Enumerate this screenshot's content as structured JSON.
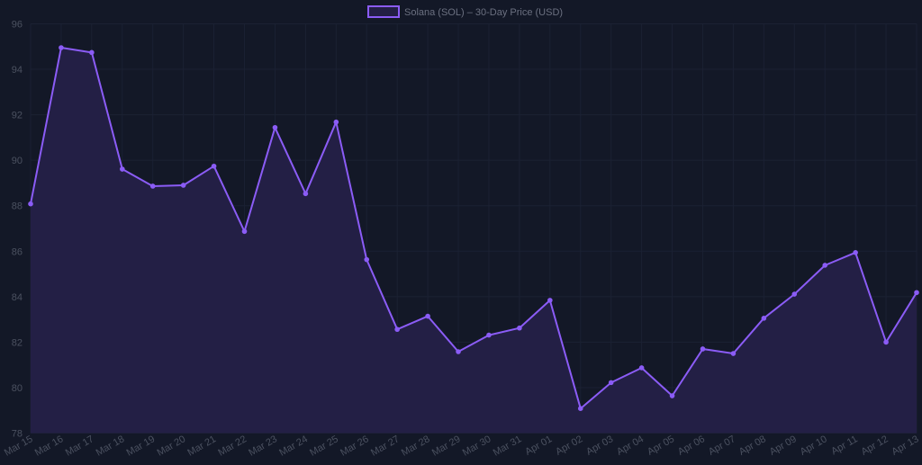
{
  "colors": {
    "background": "#131827",
    "line": "#8b5cf6",
    "fill": "#231f45",
    "grid": "#1b2133",
    "tick_text": "#4b5160",
    "legend_text": "#6b7080"
  },
  "legend": {
    "label": "Solana (SOL) – 30-Day Price (USD)"
  },
  "chart_data": {
    "type": "area",
    "title": "",
    "xlabel": "",
    "ylabel": "",
    "ylim": [
      78,
      96
    ],
    "yticks": [
      78,
      80,
      82,
      84,
      86,
      88,
      90,
      92,
      94,
      96
    ],
    "grid": true,
    "legend_position": "top-center",
    "categories": [
      "Mar 15",
      "Mar 16",
      "Mar 17",
      "Mar 18",
      "Mar 19",
      "Mar 20",
      "Mar 21",
      "Mar 22",
      "Mar 23",
      "Mar 24",
      "Mar 25",
      "Mar 26",
      "Mar 27",
      "Mar 28",
      "Mar 29",
      "Mar 30",
      "Mar 31",
      "Apr 01",
      "Apr 02",
      "Apr 03",
      "Apr 04",
      "Apr 05",
      "Apr 06",
      "Apr 07",
      "Apr 08",
      "Apr 09",
      "Apr 10",
      "Apr 11",
      "Apr 12",
      "Apr 13"
    ],
    "series": [
      {
        "name": "Solana (SOL) – 30-Day Price (USD)",
        "values": [
          88.08,
          94.95,
          94.74,
          89.61,
          88.86,
          88.9,
          89.74,
          86.87,
          91.44,
          88.53,
          91.68,
          85.63,
          82.56,
          83.14,
          81.58,
          82.31,
          82.62,
          83.84,
          79.08,
          80.22,
          80.87,
          79.64,
          81.7,
          81.5,
          83.05,
          84.11,
          85.38,
          85.94,
          82.0,
          84.18
        ]
      }
    ]
  }
}
